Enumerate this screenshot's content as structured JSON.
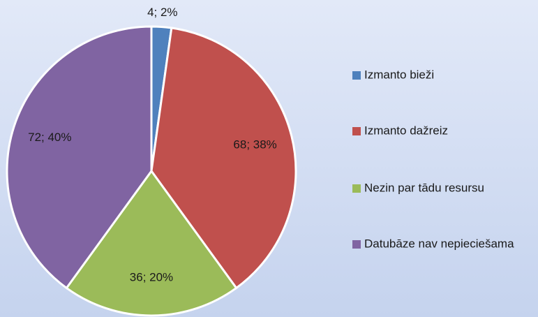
{
  "chart_data": {
    "type": "pie",
    "categories": [
      "Izmanto bieži",
      "Izmanto dažreiz",
      "Nezin par tādu resursu",
      "Datubāze nav nepieciešama"
    ],
    "values": [
      4,
      68,
      36,
      72
    ],
    "value_labels": [
      "4; 2%",
      "68; 38%",
      "36; 20%",
      "72; 40%"
    ],
    "colors": [
      "#4f81bd",
      "#c0504d",
      "#9bbb59",
      "#8064a2"
    ],
    "legend": "right"
  }
}
